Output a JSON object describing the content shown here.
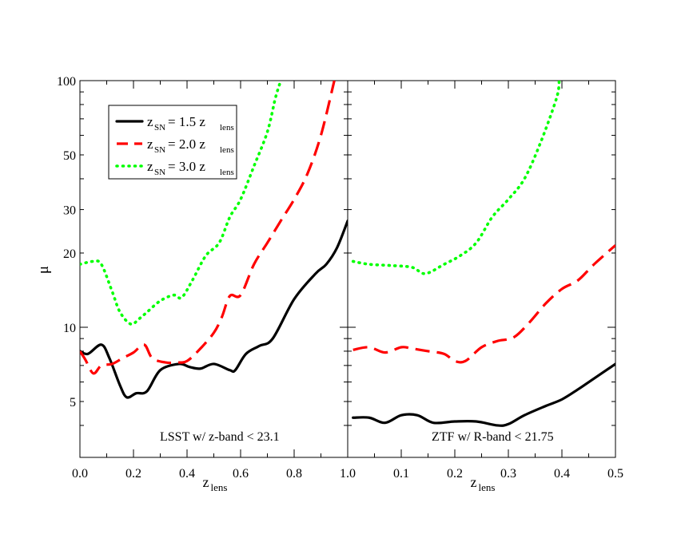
{
  "chart_data": [
    {
      "type": "line",
      "panel": "left",
      "annotation": "LSST w/ z-band < 23.1",
      "xlabel": "z",
      "xlabel_sub": "lens",
      "ylabel": "μ",
      "xlim": [
        0.0,
        1.0
      ],
      "ylim": [
        3.3,
        100
      ],
      "yscale": "log",
      "xticks": [
        "0.0",
        "0.2",
        "0.4",
        "0.6",
        "0.8",
        "1.0"
      ],
      "yticks": [
        "5",
        "10",
        "20",
        "30",
        "50",
        "100"
      ],
      "legend": {
        "placement": "top-left",
        "entries": [
          {
            "base": "z",
            "sub1": "SN",
            "mid": " = 1.5 z",
            "sub2": "lens"
          },
          {
            "base": "z",
            "sub1": "SN",
            "mid": " = 2.0 z",
            "sub2": "lens"
          },
          {
            "base": "z",
            "sub1": "SN",
            "mid": " = 3.0 z",
            "sub2": "lens"
          }
        ]
      },
      "series": [
        {
          "name": "z_SN = 1.5 z_lens",
          "color": "#000000",
          "style": "solid",
          "x": [
            0.0,
            0.03,
            0.08,
            0.11,
            0.15,
            0.175,
            0.21,
            0.25,
            0.3,
            0.37,
            0.41,
            0.45,
            0.5,
            0.56,
            0.58,
            0.62,
            0.67,
            0.72,
            0.8,
            0.88,
            0.92,
            0.96,
            1.0
          ],
          "y": [
            8.0,
            7.8,
            8.5,
            7.5,
            5.8,
            5.2,
            5.4,
            5.5,
            6.7,
            7.1,
            6.9,
            6.8,
            7.1,
            6.7,
            6.7,
            7.8,
            8.4,
            9.0,
            13,
            16.5,
            18,
            21,
            27
          ]
        },
        {
          "name": "z_SN = 2.0 z_lens",
          "color": "#ff0000",
          "style": "dashed",
          "x": [
            0.0,
            0.02,
            0.05,
            0.08,
            0.12,
            0.16,
            0.2,
            0.24,
            0.27,
            0.32,
            0.36,
            0.4,
            0.45,
            0.5,
            0.53,
            0.56,
            0.6,
            0.65,
            0.7,
            0.75,
            0.8,
            0.85,
            0.9,
            0.95
          ],
          "y": [
            8.0,
            7.4,
            6.5,
            7.0,
            7.1,
            7.5,
            7.9,
            8.5,
            7.5,
            7.2,
            7.2,
            7.3,
            8.2,
            9.5,
            11,
            13.4,
            13.5,
            18,
            22,
            27,
            33,
            42,
            60,
            100
          ]
        },
        {
          "name": "z_SN = 3.0 z_lens",
          "color": "#00ff00",
          "style": "dotted",
          "x": [
            0.0,
            0.05,
            0.08,
            0.12,
            0.15,
            0.19,
            0.22,
            0.25,
            0.3,
            0.35,
            0.38,
            0.42,
            0.47,
            0.52,
            0.56,
            0.6,
            0.65,
            0.7,
            0.73,
            0.75
          ],
          "y": [
            18,
            18.5,
            18,
            14,
            11.5,
            10.3,
            10.8,
            11.5,
            12.8,
            13.5,
            13.2,
            15.5,
            19.5,
            22,
            28,
            33,
            45,
            62,
            85,
            100
          ]
        }
      ]
    },
    {
      "type": "line",
      "panel": "right",
      "annotation": "ZTF w/ R-band < 21.75",
      "xlabel": "z",
      "xlabel_sub": "lens",
      "xlim": [
        0.0,
        0.5
      ],
      "ylim": [
        3.3,
        100
      ],
      "yscale": "log",
      "xticks": [
        "0.1",
        "0.2",
        "0.3",
        "0.4",
        "0.5"
      ],
      "series": [
        {
          "name": "z_SN = 1.5 z_lens",
          "color": "#000000",
          "style": "solid",
          "x": [
            0.01,
            0.04,
            0.07,
            0.1,
            0.13,
            0.16,
            0.2,
            0.24,
            0.28,
            0.3,
            0.33,
            0.37,
            0.4,
            0.43,
            0.46,
            0.5
          ],
          "y": [
            4.3,
            4.3,
            4.1,
            4.4,
            4.4,
            4.1,
            4.15,
            4.15,
            4.0,
            4.05,
            4.4,
            4.8,
            5.1,
            5.6,
            6.2,
            7.1
          ]
        },
        {
          "name": "z_SN = 2.0 z_lens",
          "color": "#ff0000",
          "style": "dashed",
          "x": [
            0.01,
            0.04,
            0.07,
            0.1,
            0.12,
            0.15,
            0.18,
            0.2,
            0.22,
            0.25,
            0.28,
            0.31,
            0.34,
            0.37,
            0.4,
            0.43,
            0.46,
            0.5
          ],
          "y": [
            8.1,
            8.3,
            7.9,
            8.3,
            8.2,
            8.0,
            7.8,
            7.3,
            7.3,
            8.3,
            8.8,
            9.1,
            10.5,
            12.5,
            14.3,
            15.5,
            18,
            21.5
          ]
        },
        {
          "name": "z_SN = 3.0 z_lens",
          "color": "#00ff00",
          "style": "dotted",
          "x": [
            0.01,
            0.04,
            0.08,
            0.12,
            0.145,
            0.18,
            0.21,
            0.24,
            0.27,
            0.3,
            0.33,
            0.36,
            0.39,
            0.395
          ],
          "y": [
            18.5,
            18,
            17.8,
            17.5,
            16.5,
            18,
            19.5,
            22,
            28,
            33,
            40,
            56,
            85,
            100
          ]
        }
      ]
    }
  ]
}
